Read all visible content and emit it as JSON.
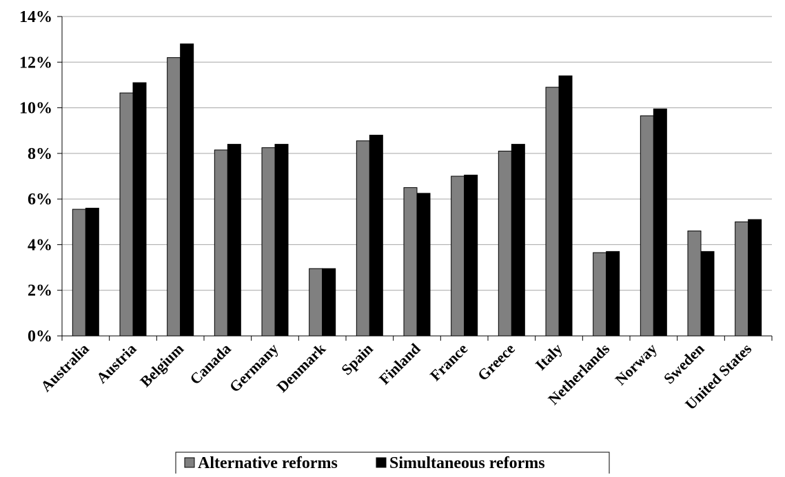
{
  "chart_data": {
    "type": "bar",
    "title": "",
    "xlabel": "",
    "ylabel": "",
    "ylim": [
      0,
      14
    ],
    "yticks": [
      "0%",
      "2%",
      "4%",
      "6%",
      "8%",
      "10%",
      "12%",
      "14%"
    ],
    "grid": "horizontal",
    "legend_position": "bottom",
    "categories": [
      "Australia",
      "Austria",
      "Belgium",
      "Canada",
      "Germany",
      "Denmark",
      "Spain",
      "Finland",
      "France",
      "Greece",
      "Italy",
      "Netherlands",
      "Norway",
      "Sweden",
      "United States"
    ],
    "series": [
      {
        "name": "Alternative reforms",
        "color": "#808080",
        "values": [
          5.55,
          10.65,
          12.2,
          8.15,
          8.25,
          2.95,
          8.55,
          6.5,
          7.0,
          8.1,
          10.9,
          3.65,
          9.65,
          4.6,
          5.0
        ]
      },
      {
        "name": "Simultaneous reforms",
        "color": "#000000",
        "values": [
          5.6,
          11.1,
          12.8,
          8.4,
          8.4,
          2.95,
          8.8,
          6.25,
          7.05,
          8.4,
          11.4,
          3.7,
          9.95,
          3.7,
          5.1
        ]
      }
    ]
  }
}
